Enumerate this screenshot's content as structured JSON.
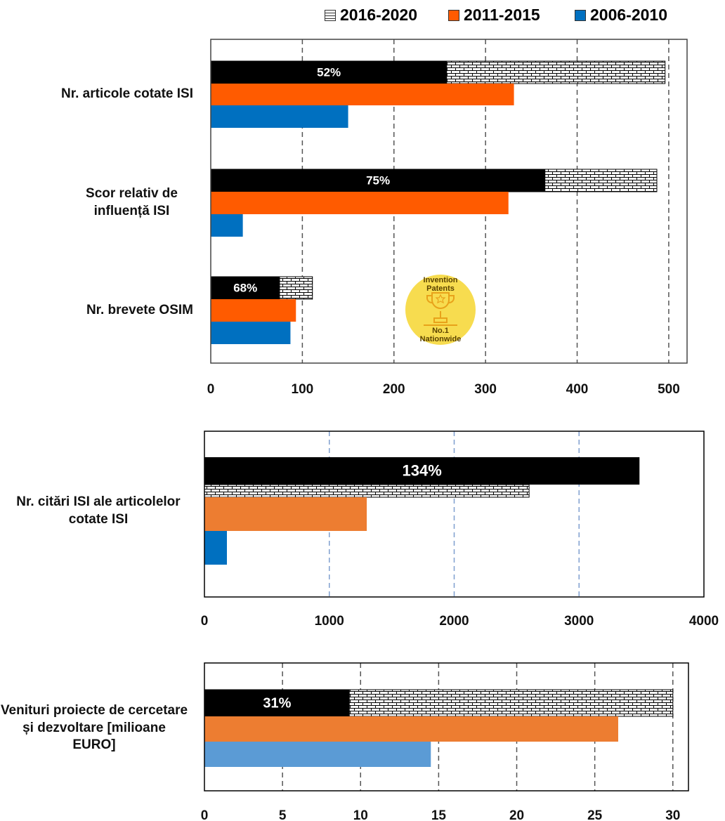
{
  "chart_data": [
    {
      "type": "bar",
      "orientation": "horizontal",
      "categories": [
        "Nr. articole cotate ISI",
        "Scor relativ de influență ISI",
        "Nr. brevete OSIM"
      ],
      "series": [
        {
          "name": "2016-2020",
          "pattern": "brick",
          "color": "#000000",
          "values": [
            496,
            487,
            111
          ]
        },
        {
          "name": "2011-2015",
          "color": "#ff5b00",
          "values": [
            331,
            325,
            93
          ]
        },
        {
          "name": "2006-2010",
          "color": "#0070c0",
          "values": [
            150,
            35,
            87
          ]
        }
      ],
      "overlay": {
        "color": "#000000",
        "values": [
          52,
          75,
          68
        ],
        "value_labels": [
          "52%",
          "75%",
          "68%"
        ]
      },
      "xlim": [
        0,
        520
      ],
      "xticks": [
        0,
        100,
        200,
        300,
        400,
        500
      ],
      "grid": true,
      "grid_color": "#555555",
      "legend": "top",
      "badge": {
        "top": [
          "Invention",
          "Patents"
        ],
        "bottom": [
          "No.1",
          "Nationwide"
        ],
        "color": "#f7dc4f"
      }
    },
    {
      "type": "bar",
      "orientation": "horizontal",
      "categories": [
        "Nr. citări ISI ale articolelor cotate ISI"
      ],
      "series": [
        {
          "pattern": "brick",
          "color": "#000000",
          "values": [
            2600
          ]
        },
        {
          "color": "#ed7d31",
          "values": [
            1300
          ]
        },
        {
          "color": "#0070c0",
          "values": [
            180
          ]
        }
      ],
      "overlay": {
        "color": "#000000",
        "values": [
          134
        ],
        "value_labels": [
          "134%"
        ]
      },
      "xlim": [
        0,
        4000
      ],
      "xticks": [
        0,
        1000,
        2000,
        3000,
        4000
      ],
      "grid": true,
      "grid_color": "#7f9fcf"
    },
    {
      "type": "bar",
      "orientation": "horizontal",
      "categories": [
        "Venituri proiecte de cercetare și dezvoltare [milioane EURO]"
      ],
      "series": [
        {
          "pattern": "brick",
          "color": "#000000",
          "values": [
            30
          ]
        },
        {
          "color": "#ed7d31",
          "values": [
            26.5
          ]
        },
        {
          "color": "#5b9bd5",
          "values": [
            14.5
          ]
        }
      ],
      "overlay": {
        "color": "#000000",
        "values": [
          31
        ],
        "value_labels": [
          "31%"
        ]
      },
      "xlim": [
        0,
        31
      ],
      "xticks": [
        0,
        5,
        10,
        15,
        20,
        25,
        30
      ],
      "grid": true,
      "grid_color": "#555555"
    }
  ]
}
